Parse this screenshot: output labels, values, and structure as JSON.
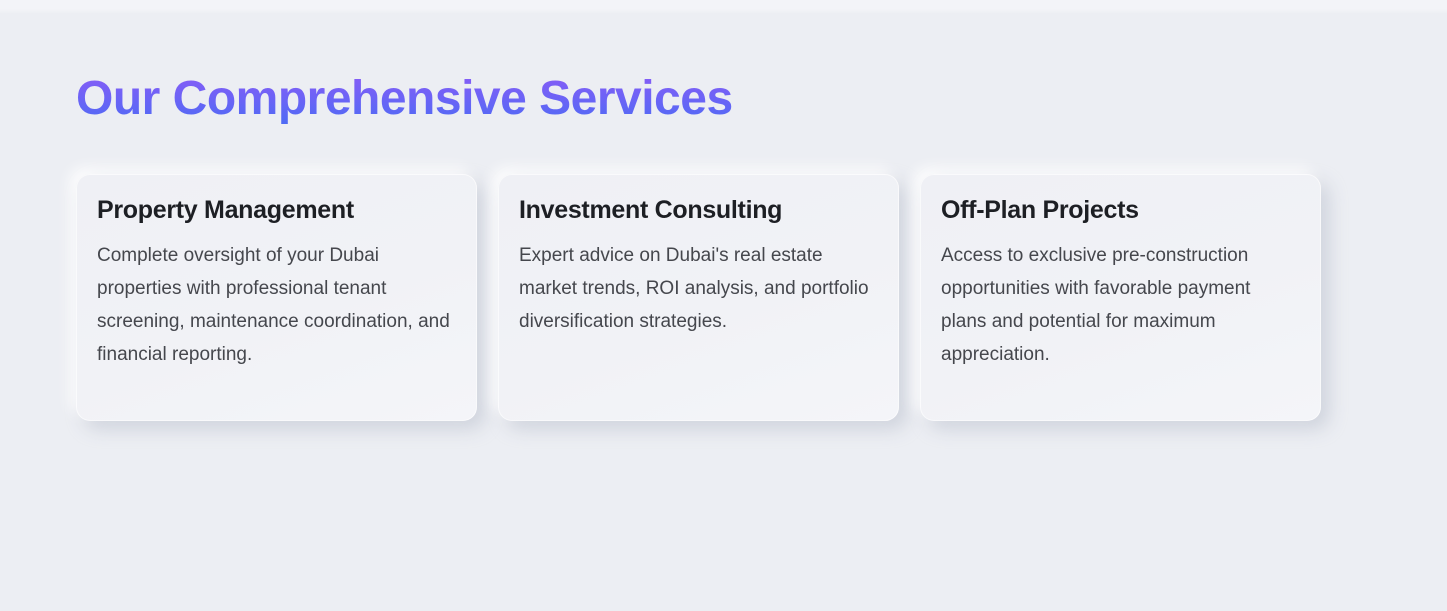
{
  "theme": {
    "background": "#eceef3",
    "card_background": "#f1f2f6",
    "heading_gradient_from": "#8a5cf6",
    "heading_gradient_to": "#4c6bf5",
    "title_color": "#1d1f24",
    "body_color": "#45474d"
  },
  "section": {
    "heading": "Our Comprehensive Services"
  },
  "cards": [
    {
      "title": "Property Management",
      "description": "Complete oversight of your Dubai properties with professional tenant screening, maintenance coordination, and financial reporting."
    },
    {
      "title": "Investment Consulting",
      "description": "Expert advice on Dubai's real estate market trends, ROI analysis, and portfolio diversification strategies."
    },
    {
      "title": "Off-Plan Projects",
      "description": "Access to exclusive pre-construction opportunities with favorable payment plans and potential for maximum appreciation."
    }
  ]
}
